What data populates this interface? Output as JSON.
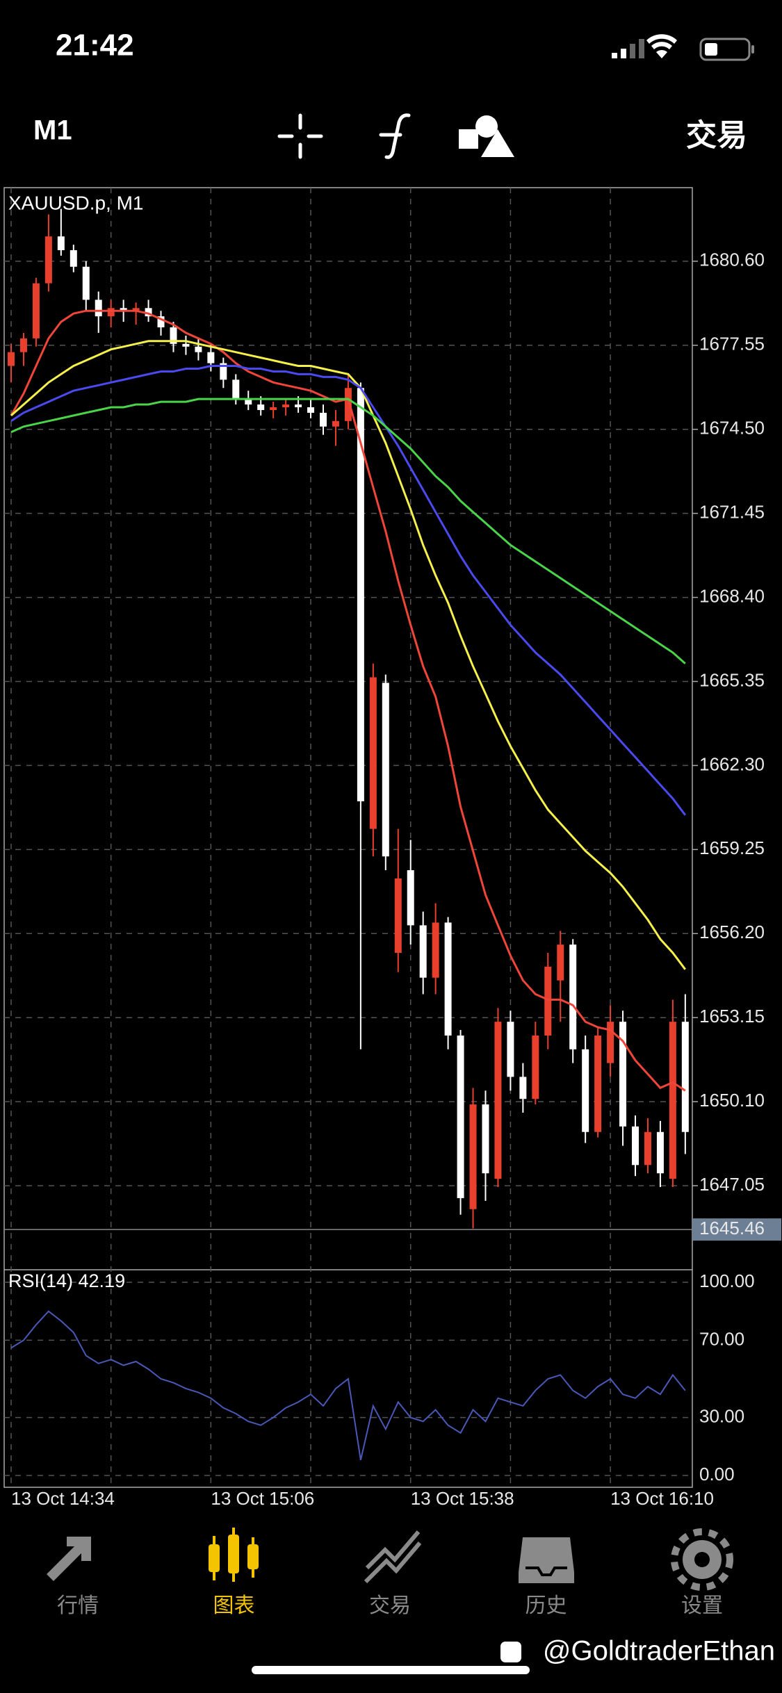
{
  "status_bar": {
    "time": "21:42"
  },
  "toolbar": {
    "timeframe": "M1",
    "trade": "交易"
  },
  "chart_data": {
    "type": "candlestick",
    "title": "XAUUSD.p, M1",
    "categories": [
      "13 Oct 14:34",
      null,
      null,
      null,
      null,
      null,
      null,
      null,
      null,
      null,
      null,
      null,
      null,
      null,
      null,
      null,
      "13 Oct 15:06",
      null,
      null,
      null,
      null,
      null,
      null,
      null,
      null,
      null,
      null,
      null,
      null,
      null,
      null,
      null,
      "13 Oct 15:38",
      null,
      null,
      null,
      null,
      null,
      null,
      null,
      null,
      null,
      null,
      null,
      null,
      null,
      null,
      null,
      "13 Oct 16:10",
      null,
      null,
      null,
      null,
      null,
      null
    ],
    "candles": {
      "open": [
        1676.8,
        1677.3,
        1677.8,
        1679.8,
        1681.5,
        1681.0,
        1680.4,
        1679.2,
        1678.6,
        1678.9,
        1678.8,
        1678.9,
        1678.6,
        1678.2,
        1677.6,
        1677.5,
        1677.3,
        1676.9,
        1676.3,
        1675.6,
        1675.4,
        1675.2,
        1675.3,
        1675.4,
        1675.3,
        1675.1,
        1674.6,
        1674.8,
        1676.0,
        1660.0,
        1665.3,
        1655.5,
        1658.5,
        1656.5,
        1654.6,
        1656.6,
        1652.5,
        1646.2,
        1650.0,
        1647.3,
        1653.0,
        1651.0,
        1650.2,
        1652.5,
        1654.5,
        1655.8,
        1652.0,
        1649.0,
        1651.5,
        1653.0,
        1649.2,
        1647.8,
        1649.0,
        1647.3,
        1653.0
      ],
      "high": [
        1677.6,
        1678.0,
        1680.0,
        1682.3,
        1682.5,
        1681.2,
        1680.6,
        1679.5,
        1679.2,
        1679.2,
        1679.1,
        1679.2,
        1678.8,
        1678.4,
        1677.9,
        1677.8,
        1677.6,
        1677.1,
        1676.5,
        1675.9,
        1675.7,
        1675.5,
        1675.6,
        1675.7,
        1675.6,
        1675.4,
        1675.2,
        1676.5,
        1676.2,
        1666.0,
        1665.6,
        1660.0,
        1659.6,
        1657.0,
        1657.3,
        1656.8,
        1652.7,
        1650.6,
        1650.5,
        1653.5,
        1653.4,
        1651.5,
        1653.0,
        1655.5,
        1656.3,
        1656.0,
        1652.5,
        1652.8,
        1653.6,
        1653.4,
        1649.6,
        1649.5,
        1649.4,
        1653.8,
        1654.0
      ],
      "low": [
        1676.2,
        1676.8,
        1677.5,
        1679.5,
        1680.8,
        1680.2,
        1678.8,
        1678.0,
        1678.2,
        1678.4,
        1678.3,
        1678.4,
        1677.9,
        1677.3,
        1677.2,
        1677.0,
        1676.6,
        1676.0,
        1675.4,
        1675.2,
        1675.0,
        1674.9,
        1675.0,
        1675.1,
        1674.9,
        1674.3,
        1673.9,
        1674.5,
        1652.0,
        1659.0,
        1658.5,
        1654.8,
        1655.8,
        1654.0,
        1654.0,
        1652.0,
        1646.0,
        1645.5,
        1646.5,
        1647.0,
        1650.5,
        1649.7,
        1650.0,
        1652.0,
        1653.0,
        1651.5,
        1648.6,
        1648.8,
        1651.0,
        1648.5,
        1647.4,
        1647.5,
        1647.0,
        1647.0,
        1648.2
      ],
      "close": [
        1677.3,
        1677.8,
        1679.8,
        1681.5,
        1681.0,
        1680.4,
        1679.2,
        1678.6,
        1678.9,
        1678.8,
        1678.9,
        1678.6,
        1678.2,
        1677.6,
        1677.5,
        1677.3,
        1676.9,
        1676.3,
        1675.6,
        1675.4,
        1675.2,
        1675.3,
        1675.4,
        1675.3,
        1675.1,
        1674.6,
        1674.8,
        1676.0,
        1661.0,
        1665.5,
        1659.0,
        1658.2,
        1656.5,
        1654.6,
        1656.6,
        1652.5,
        1646.6,
        1650.0,
        1647.5,
        1653.0,
        1651.0,
        1650.2,
        1652.5,
        1655.0,
        1655.8,
        1652.0,
        1649.0,
        1652.5,
        1653.0,
        1649.2,
        1647.8,
        1649.0,
        1647.5,
        1653.0,
        1649.0
      ],
      "up_color": "#e8402c",
      "down_color": "#ffffff"
    },
    "lines": [
      {
        "color": "#f0463a",
        "values": [
          1675.0,
          1675.8,
          1676.8,
          1677.8,
          1678.4,
          1678.7,
          1678.8,
          1678.8,
          1678.8,
          1678.8,
          1678.8,
          1678.7,
          1678.5,
          1678.3,
          1678.0,
          1677.8,
          1677.6,
          1677.3,
          1676.9,
          1676.6,
          1676.4,
          1676.2,
          1676.1,
          1676.0,
          1675.9,
          1675.7,
          1675.5,
          1675.6,
          1674.0,
          1672.4,
          1670.8,
          1669.0,
          1667.4,
          1665.9,
          1664.8,
          1663.0,
          1660.8,
          1659.2,
          1657.6,
          1656.5,
          1655.4,
          1654.5,
          1654.0,
          1653.8,
          1653.8,
          1653.6,
          1653.0,
          1652.8,
          1652.7,
          1652.3,
          1651.6,
          1651.1,
          1650.6,
          1650.8,
          1650.5
        ]
      },
      {
        "color": "#f5f04a",
        "values": [
          1675.0,
          1675.4,
          1675.8,
          1676.2,
          1676.5,
          1676.8,
          1677.0,
          1677.2,
          1677.4,
          1677.5,
          1677.6,
          1677.7,
          1677.7,
          1677.7,
          1677.7,
          1677.6,
          1677.5,
          1677.4,
          1677.3,
          1677.2,
          1677.1,
          1677.0,
          1676.9,
          1676.8,
          1676.8,
          1676.7,
          1676.6,
          1676.5,
          1676.0,
          1675.0,
          1674.0,
          1672.8,
          1671.6,
          1670.3,
          1669.2,
          1668.2,
          1667.0,
          1665.9,
          1664.9,
          1663.9,
          1663.0,
          1662.2,
          1661.4,
          1660.7,
          1660.2,
          1659.7,
          1659.2,
          1658.8,
          1658.4,
          1657.9,
          1657.3,
          1656.7,
          1656.0,
          1655.5,
          1654.9
        ]
      },
      {
        "color": "#4a4af0",
        "values": [
          1674.8,
          1675.1,
          1675.3,
          1675.5,
          1675.7,
          1675.9,
          1676.0,
          1676.1,
          1676.2,
          1676.3,
          1676.4,
          1676.5,
          1676.6,
          1676.6,
          1676.7,
          1676.7,
          1676.8,
          1676.8,
          1676.8,
          1676.7,
          1676.7,
          1676.6,
          1676.6,
          1676.5,
          1676.5,
          1676.4,
          1676.4,
          1676.3,
          1676.0,
          1675.3,
          1674.6,
          1673.9,
          1673.1,
          1672.3,
          1671.5,
          1670.7,
          1669.9,
          1669.2,
          1668.6,
          1668.0,
          1667.4,
          1666.9,
          1666.4,
          1666.0,
          1665.6,
          1665.1,
          1664.6,
          1664.1,
          1663.6,
          1663.1,
          1662.6,
          1662.1,
          1661.6,
          1661.1,
          1660.5
        ]
      },
      {
        "color": "#4ad44a",
        "values": [
          1674.4,
          1674.6,
          1674.7,
          1674.8,
          1674.9,
          1675.0,
          1675.1,
          1675.2,
          1675.3,
          1675.3,
          1675.4,
          1675.4,
          1675.5,
          1675.5,
          1675.5,
          1675.6,
          1675.6,
          1675.6,
          1675.6,
          1675.6,
          1675.6,
          1675.6,
          1675.6,
          1675.6,
          1675.6,
          1675.6,
          1675.6,
          1675.6,
          1675.3,
          1675.0,
          1674.6,
          1674.2,
          1673.8,
          1673.3,
          1672.8,
          1672.4,
          1671.9,
          1671.5,
          1671.1,
          1670.7,
          1670.3,
          1670.0,
          1669.7,
          1669.4,
          1669.1,
          1668.8,
          1668.5,
          1668.2,
          1667.9,
          1667.6,
          1667.3,
          1667.0,
          1666.7,
          1666.4,
          1666.0
        ]
      }
    ],
    "ylim": [
      1644.0,
      1683.27
    ],
    "yticks": [
      1647.05,
      {
        "value": 1650.1,
        "label": "1650.10"
      },
      1653.15,
      {
        "value": 1656.2,
        "label": "1656.20"
      },
      1659.25,
      {
        "value": 1662.3,
        "label": "1662.30"
      },
      1665.35,
      {
        "value": 1668.4,
        "label": "1668.40"
      },
      1671.45,
      {
        "value": 1674.5,
        "label": "1674.50"
      },
      1677.55,
      {
        "value": 1680.6,
        "label": "1680.60"
      }
    ],
    "current_price": 1645.46,
    "grid": true,
    "rsi": {
      "label": "RSI(14) 42.19",
      "color": "#4a58b8",
      "values": [
        66,
        70,
        78,
        85,
        80,
        74,
        62,
        58,
        60,
        57,
        59,
        55,
        50,
        48,
        45,
        43,
        40,
        35,
        32,
        28,
        26,
        30,
        35,
        38,
        42,
        36,
        45,
        50,
        8,
        36,
        24,
        38,
        30,
        28,
        34,
        26,
        22,
        34,
        28,
        40,
        38,
        36,
        44,
        50,
        52,
        44,
        40,
        46,
        50,
        42,
        40,
        46,
        42,
        52,
        44
      ],
      "ylim": [
        0,
        100
      ],
      "yticks": [
        {
          "value": 100,
          "label": "100.00"
        },
        {
          "value": 70,
          "label": "70.00"
        },
        {
          "value": 30,
          "label": "30.00"
        },
        {
          "value": 0,
          "label": "0.00"
        }
      ]
    }
  },
  "tabs": [
    {
      "label": "行情"
    },
    {
      "label": "图表",
      "active": true
    },
    {
      "label": "交易"
    },
    {
      "label": "历史"
    },
    {
      "label": "设置"
    }
  ],
  "watermark": "@GoldtraderEthan"
}
